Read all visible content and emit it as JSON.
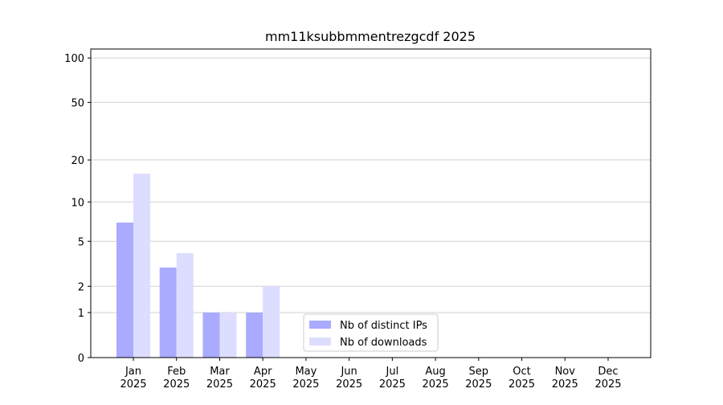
{
  "chart_data": {
    "type": "bar",
    "title": "mm11ksubbmmentrezgcdf 2025",
    "categories": [
      "Jan\n2025",
      "Feb\n2025",
      "Mar\n2025",
      "Apr\n2025",
      "May\n2025",
      "Jun\n2025",
      "Jul\n2025",
      "Aug\n2025",
      "Sep\n2025",
      "Oct\n2025",
      "Nov\n2025",
      "Dec\n2025"
    ],
    "series": [
      {
        "name": "Nb of distinct IPs",
        "color": "#aaaaff",
        "values": [
          7,
          3,
          1,
          1,
          0,
          0,
          0,
          0,
          0,
          0,
          0,
          0
        ]
      },
      {
        "name": "Nb of downloads",
        "color": "#ddddff",
        "values": [
          16,
          4,
          1,
          2,
          0,
          0,
          0,
          0,
          0,
          0,
          0,
          0
        ]
      }
    ],
    "yscale": "log1p",
    "ylim": [
      0,
      115
    ],
    "yticks": [
      0,
      1,
      2,
      5,
      10,
      20,
      50,
      100
    ],
    "grid": true,
    "legend": "lower center"
  }
}
